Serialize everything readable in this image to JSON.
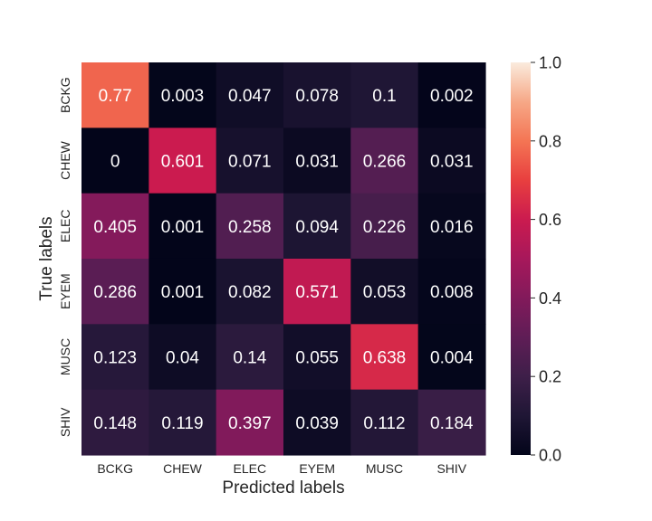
{
  "chart_data": {
    "type": "heatmap",
    "title": "",
    "xlabel": "Predicted labels",
    "ylabel": "True labels",
    "x_categories": [
      "BCKG",
      "CHEW",
      "ELEC",
      "EYEM",
      "MUSC",
      "SHIV"
    ],
    "y_categories": [
      "BCKG",
      "CHEW",
      "ELEC",
      "EYEM",
      "MUSC",
      "SHIV"
    ],
    "values": [
      [
        0.77,
        0.003,
        0.047,
        0.078,
        0.1,
        0.002
      ],
      [
        0,
        0.601,
        0.071,
        0.031,
        0.266,
        0.031
      ],
      [
        0.405,
        0.001,
        0.258,
        0.094,
        0.226,
        0.016
      ],
      [
        0.286,
        0.001,
        0.082,
        0.571,
        0.053,
        0.008
      ],
      [
        0.123,
        0.04,
        0.14,
        0.055,
        0.638,
        0.004
      ],
      [
        0.148,
        0.119,
        0.397,
        0.039,
        0.112,
        0.184
      ]
    ],
    "value_labels": [
      [
        "0.77",
        "0.003",
        "0.047",
        "0.078",
        "0.1",
        "0.002"
      ],
      [
        "0",
        "0.601",
        "0.071",
        "0.031",
        "0.266",
        "0.031"
      ],
      [
        "0.405",
        "0.001",
        "0.258",
        "0.094",
        "0.226",
        "0.016"
      ],
      [
        "0.286",
        "0.001",
        "0.082",
        "0.571",
        "0.053",
        "0.008"
      ],
      [
        "0.123",
        "0.04",
        "0.14",
        "0.055",
        "0.638",
        "0.004"
      ],
      [
        "0.148",
        "0.119",
        "0.397",
        "0.039",
        "0.112",
        "0.184"
      ]
    ],
    "colorbar": {
      "range": [
        0.0,
        1.0
      ],
      "ticks": [
        0.0,
        0.2,
        0.4,
        0.6,
        0.8,
        1.0
      ],
      "tick_labels": [
        "0.0",
        "0.2",
        "0.4",
        "0.6",
        "0.8",
        "1.0"
      ],
      "colormap": "rocket"
    },
    "grid": false
  }
}
